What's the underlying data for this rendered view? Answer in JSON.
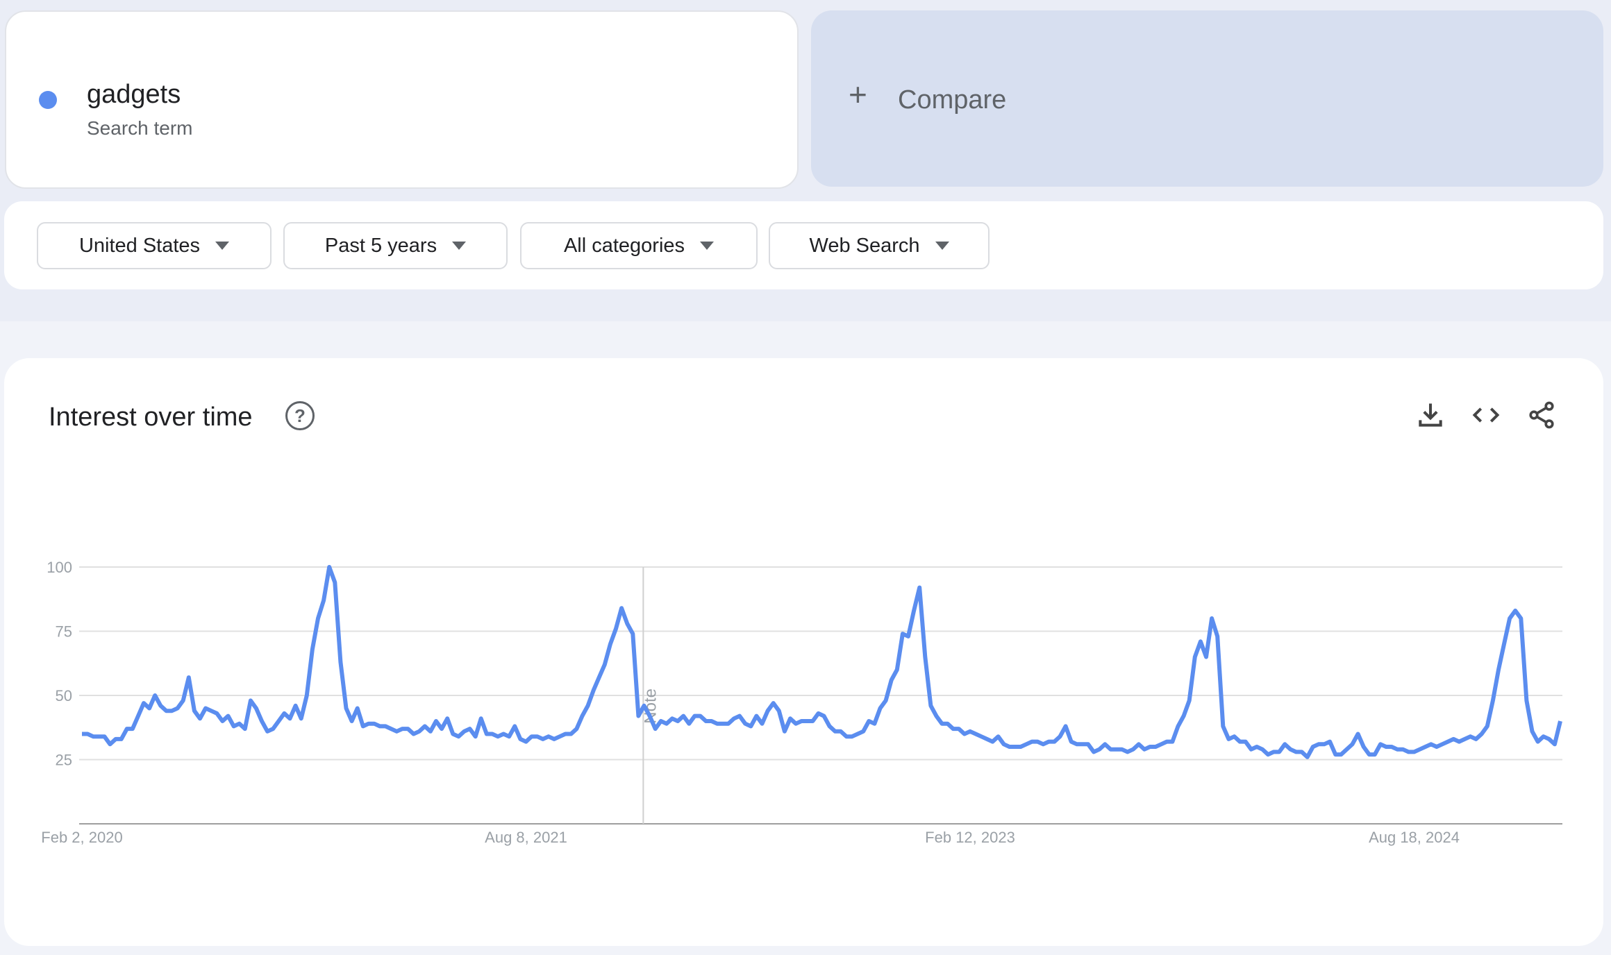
{
  "term_card": {
    "term": "gadgets",
    "subtitle": "Search term",
    "color": "#5b8def"
  },
  "compare": {
    "icon": "plus-icon",
    "plus": "+",
    "label": "Compare"
  },
  "filters": [
    {
      "label": "United States"
    },
    {
      "label": "Past 5 years"
    },
    {
      "label": "All categories"
    },
    {
      "label": "Web Search"
    }
  ],
  "chart_card": {
    "title": "Interest over time",
    "help": "?",
    "tools": [
      "download-icon",
      "embed-code-icon",
      "share-icon"
    ]
  },
  "chart_data": {
    "type": "line",
    "title": "",
    "xlabel": "",
    "ylabel": "",
    "start_date": "2020-02-02",
    "frequency": "weekly",
    "ylim": [
      0,
      100
    ],
    "yticks": [
      "25",
      "50",
      "75",
      "100"
    ],
    "xticks": [
      {
        "date": "2020-02-02",
        "label": "Feb 2, 2020"
      },
      {
        "date": "2021-08-08",
        "label": "Aug 8, 2021"
      },
      {
        "date": "2023-02-12",
        "label": "Feb 12, 2023"
      },
      {
        "date": "2024-08-18",
        "label": "Aug 18, 2024"
      }
    ],
    "grid": true,
    "annotation": {
      "date": "2022-01-01",
      "label": "Note"
    },
    "series": [
      {
        "color": "#5b8def",
        "values": [
          35,
          35,
          34,
          34,
          34,
          31,
          33,
          33,
          37,
          37,
          42,
          47,
          45,
          50,
          46,
          44,
          44,
          45,
          48,
          57,
          44,
          41,
          45,
          44,
          43,
          40,
          42,
          38,
          39,
          37,
          48,
          45,
          40,
          36,
          37,
          40,
          43,
          41,
          46,
          41,
          50,
          68,
          80,
          87,
          100,
          94,
          63,
          45,
          40,
          45,
          38,
          39,
          39,
          38,
          38,
          37,
          36,
          37,
          37,
          35,
          36,
          38,
          36,
          40,
          37,
          41,
          35,
          34,
          36,
          37,
          34,
          41,
          35,
          35,
          34,
          35,
          34,
          38,
          33,
          32,
          34,
          34,
          33,
          34,
          33,
          34,
          35,
          35,
          37,
          42,
          46,
          52,
          57,
          62,
          70,
          76,
          84,
          78,
          74,
          42,
          46,
          42,
          37,
          40,
          39,
          41,
          40,
          42,
          39,
          42,
          42,
          40,
          40,
          39,
          39,
          39,
          41,
          42,
          39,
          38,
          42,
          39,
          44,
          47,
          44,
          36,
          41,
          39,
          40,
          40,
          40,
          43,
          42,
          38,
          36,
          36,
          34,
          34,
          35,
          36,
          40,
          39,
          45,
          48,
          56,
          60,
          74,
          73,
          83,
          92,
          65,
          46,
          42,
          39,
          39,
          37,
          37,
          35,
          36,
          35,
          34,
          33,
          32,
          34,
          31,
          30,
          30,
          30,
          31,
          32,
          32,
          31,
          32,
          32,
          34,
          38,
          32,
          31,
          31,
          31,
          28,
          29,
          31,
          29,
          29,
          29,
          28,
          29,
          31,
          29,
          30,
          30,
          31,
          32,
          32,
          38,
          42,
          48,
          65,
          71,
          65,
          80,
          73,
          38,
          33,
          34,
          32,
          32,
          29,
          30,
          29,
          27,
          28,
          28,
          31,
          29,
          28,
          28,
          26,
          30,
          31,
          31,
          32,
          27,
          27,
          29,
          31,
          35,
          30,
          27,
          27,
          31,
          30,
          30,
          29,
          29,
          28,
          28,
          29,
          30,
          31,
          30,
          31,
          32,
          33,
          32,
          33,
          34,
          33,
          35,
          38,
          48,
          60,
          70,
          80,
          83,
          80,
          48,
          36,
          32,
          34,
          33,
          31,
          40
        ]
      }
    ]
  }
}
